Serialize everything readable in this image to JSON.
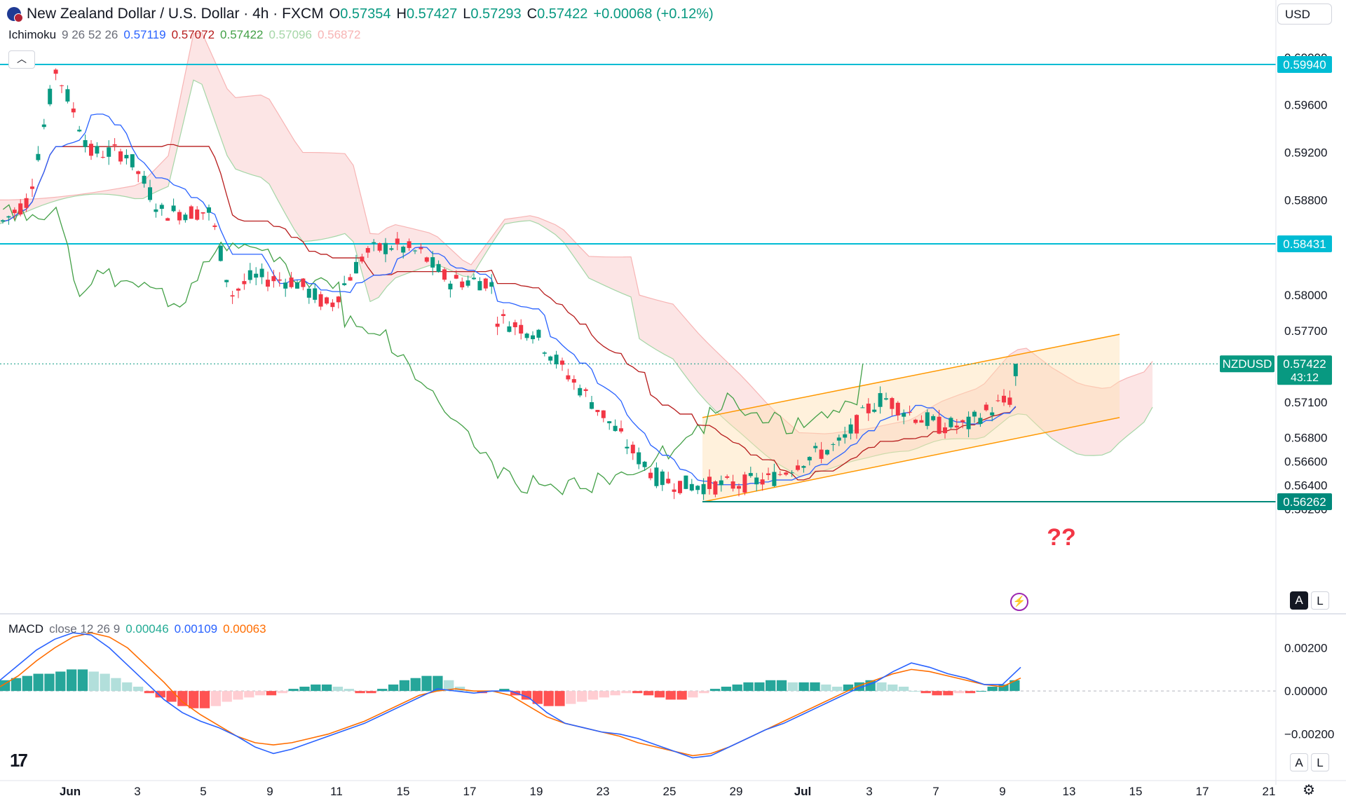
{
  "header": {
    "title": "New Zealand Dollar / U.S. Dollar · 4h · FXCM",
    "o_label": "O",
    "o": "0.57354",
    "h_label": "H",
    "h": "0.57427",
    "l_label": "L",
    "l": "0.57293",
    "c_label": "C",
    "c": "0.57422",
    "change": "+0.00068 (+0.12%)",
    "currency": "USD"
  },
  "ichimoku_legend": {
    "name": "Ichimoku",
    "params": "9 26 52 26",
    "v1": "0.57119",
    "v2": "0.57072",
    "v3": "0.57422",
    "v4": "0.57096",
    "v5": "0.56872"
  },
  "macd_legend": {
    "name": "MACD",
    "params": "close 12 26 9",
    "hist": "0.00046",
    "macd": "0.00109",
    "signal": "0.00063"
  },
  "annotation": "??",
  "buttons": {
    "a": "A",
    "l": "L"
  },
  "colors": {
    "up": "#089981",
    "down": "#f23645",
    "conversion": "#2962ff",
    "base": "#b71c1c",
    "lagging": "#43a047",
    "cloud_bull": "#a5d6a7",
    "cloud_bear": "#f7b4b4",
    "level_line": "#00bcd4",
    "channel": "#ff9800",
    "macd": "#2962ff",
    "signal": "#ff6d00",
    "annotation": "#f23645"
  },
  "chart_data": {
    "type": "candlestick",
    "symbol": "NZDUSD",
    "timeframe": "4h",
    "price_axis_labels": [
      "0.60000",
      "0.59600",
      "0.59200",
      "0.58800",
      "0.58000",
      "0.57700",
      "0.57100",
      "0.56800",
      "0.56600",
      "0.56400",
      "0.56200"
    ],
    "ylim": [
      0.5608,
      0.601
    ],
    "date_axis_labels": [
      "Jun",
      "3",
      "5",
      "9",
      "11",
      "15",
      "17",
      "19",
      "23",
      "25",
      "29",
      "Jul",
      "3",
      "7",
      "9",
      "13",
      "15",
      "17",
      "21"
    ],
    "price_tags": [
      {
        "label": "",
        "value": "0.59940",
        "price": 0.5994
      },
      {
        "label": "",
        "value": "0.58431",
        "price": 0.58431
      },
      {
        "label": "NZDUSD",
        "value": "0.57422",
        "sub": "43:12",
        "price": 0.57422
      },
      {
        "label": "",
        "value": "0.56262",
        "price": 0.56262
      }
    ],
    "horizontal_levels": [
      0.5994,
      0.58431,
      0.56262
    ],
    "channel": {
      "upper": [
        [
          0.5703,
          0.5767
        ]
      ],
      "lower": [
        [
          0.5626,
          0.5697
        ]
      ]
    },
    "macd_axis_labels": [
      "0.00200",
      "0.00000",
      "−0.00200"
    ],
    "macd_ylim": [
      -0.0037,
      0.0028
    ],
    "macd_hist": [
      0.0005,
      0.0006,
      0.0007,
      0.0008,
      0.0008,
      0.0009,
      0.001,
      0.001,
      0.0009,
      0.0008,
      0.0006,
      0.0004,
      0.0002,
      -0.0001,
      -0.0003,
      -0.0005,
      -0.0007,
      -0.0008,
      -0.0008,
      -0.0007,
      -0.0005,
      -0.0004,
      -0.0003,
      -0.0002,
      -0.0002,
      -0.0001,
      0.0001,
      0.0002,
      0.0003,
      0.0003,
      0.0002,
      0.0001,
      -0.0001,
      -0.0001,
      0.0001,
      0.0003,
      0.0005,
      0.0006,
      0.0007,
      0.0007,
      0.0005,
      0.0002,
      0.0,
      -0.0001,
      0.0,
      0.0001,
      -0.0002,
      -0.0004,
      -0.0006,
      -0.0007,
      -0.0007,
      -0.0006,
      -0.0005,
      -0.0004,
      -0.0003,
      -0.0002,
      -0.0001,
      -0.0001,
      -0.0002,
      -0.0003,
      -0.0004,
      -0.0004,
      -0.0003,
      -0.0001,
      0.0001,
      0.0002,
      0.0003,
      0.0004,
      0.0004,
      0.0005,
      0.0005,
      0.0004,
      0.0004,
      0.0004,
      0.0003,
      0.0002,
      0.0003,
      0.0004,
      0.0005,
      0.0004,
      0.0003,
      0.0002,
      0.0,
      -0.0001,
      -0.0002,
      -0.0002,
      -0.0001,
      -0.0001,
      0.0,
      0.0002,
      0.0003,
      0.0005
    ],
    "macd_line": [
      0.0005,
      0.0012,
      0.0019,
      0.0024,
      0.0027,
      0.0026,
      0.002,
      0.0012,
      0.0004,
      -0.0004,
      -0.001,
      -0.0014,
      -0.0017,
      -0.0021,
      -0.0026,
      -0.0029,
      -0.0027,
      -0.0024,
      -0.0021,
      -0.0018,
      -0.0015,
      -0.0011,
      -0.0007,
      -0.0003,
      0.0001,
      0.0,
      -0.0001,
      0.0,
      0.0,
      -0.0003,
      -0.001,
      -0.0015,
      -0.0017,
      -0.0019,
      -0.002,
      -0.0022,
      -0.0025,
      -0.0028,
      -0.0031,
      -0.003,
      -0.0026,
      -0.0022,
      -0.0018,
      -0.0015,
      -0.0011,
      -0.0007,
      -0.0003,
      0.0001,
      0.0004,
      0.0009,
      0.0013,
      0.0011,
      0.0008,
      0.0006,
      0.0003,
      0.0003,
      0.0011
    ],
    "signal_line": [
      0.0002,
      0.0007,
      0.0014,
      0.002,
      0.0025,
      0.0027,
      0.0025,
      0.002,
      0.0012,
      0.0004,
      -0.0005,
      -0.0011,
      -0.0016,
      -0.0021,
      -0.0024,
      -0.0025,
      -0.0024,
      -0.0022,
      -0.002,
      -0.0017,
      -0.0014,
      -0.001,
      -0.0006,
      -0.0002,
      0.0,
      0.0001,
      0.0,
      0.0,
      -0.0002,
      -0.0007,
      -0.0012,
      -0.0015,
      -0.0017,
      -0.0019,
      -0.0021,
      -0.0024,
      -0.0026,
      -0.0028,
      -0.003,
      -0.0029,
      -0.0026,
      -0.0022,
      -0.0018,
      -0.0014,
      -0.001,
      -0.0006,
      -0.0002,
      0.0002,
      0.0005,
      0.0008,
      0.001,
      0.0009,
      0.0007,
      0.0005,
      0.0003,
      0.0002,
      0.0006
    ]
  }
}
